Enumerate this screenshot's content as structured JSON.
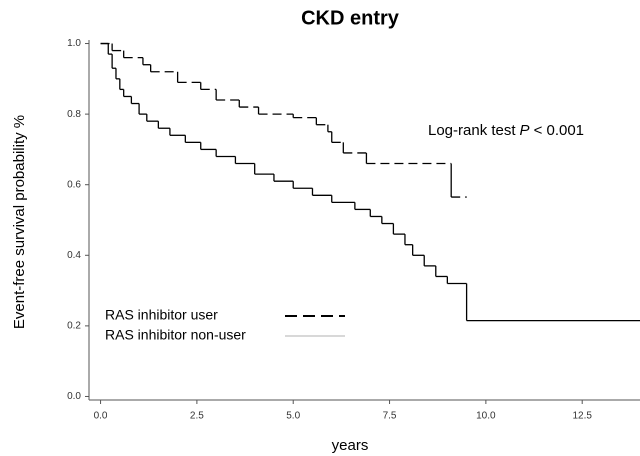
{
  "chart_data": {
    "type": "step",
    "title": "CKD entry",
    "xlabel": "years",
    "ylabel": "Event-free survival probability %",
    "annotation": [
      "Log-rank test",
      "P",
      "< 0.001"
    ],
    "xlim": [
      -0.3,
      14
    ],
    "ylim": [
      -0.01,
      1.01
    ],
    "xticks": [
      {
        "value": 0,
        "label": "0.0"
      },
      2.5,
      {
        "value": 5,
        "label": "5.0"
      },
      7.5,
      {
        "value": 10,
        "label": "10.0"
      },
      12.5
    ],
    "yticks": [
      {
        "value": 0,
        "label": "0.0"
      },
      0.2,
      0.4,
      0.6,
      0.8,
      {
        "value": 1,
        "label": "1.0"
      }
    ],
    "series": [
      {
        "name": "RAS inhibitor user",
        "color": "#000000",
        "linestyle": "dashed",
        "x": [
          0,
          0.3,
          0.6,
          1.1,
          1.3,
          2.0,
          2.6,
          3.0,
          3.6,
          4.1,
          5.0,
          5.6,
          5.9,
          6.0,
          6.3,
          6.9,
          9.1,
          9.5
        ],
        "values": [
          1.0,
          0.98,
          0.96,
          0.94,
          0.92,
          0.89,
          0.87,
          0.84,
          0.82,
          0.8,
          0.79,
          0.77,
          0.75,
          0.72,
          0.69,
          0.66,
          0.565,
          0.565
        ]
      },
      {
        "name": "RAS inhibitor non-user",
        "color": "#000000",
        "linestyle": "solid",
        "x": [
          0,
          0.2,
          0.3,
          0.4,
          0.5,
          0.6,
          0.8,
          1.0,
          1.2,
          1.5,
          1.8,
          2.2,
          2.6,
          3.0,
          3.5,
          4.0,
          4.5,
          5.0,
          5.5,
          6.0,
          6.6,
          7.0,
          7.3,
          7.6,
          7.9,
          8.1,
          8.4,
          8.7,
          9.0,
          9.5,
          14
        ],
        "values": [
          1.0,
          0.97,
          0.93,
          0.9,
          0.87,
          0.85,
          0.83,
          0.8,
          0.78,
          0.76,
          0.74,
          0.72,
          0.7,
          0.68,
          0.66,
          0.63,
          0.61,
          0.59,
          0.57,
          0.55,
          0.53,
          0.51,
          0.49,
          0.46,
          0.43,
          0.4,
          0.37,
          0.34,
          0.32,
          0.215,
          0.215
        ]
      }
    ]
  }
}
